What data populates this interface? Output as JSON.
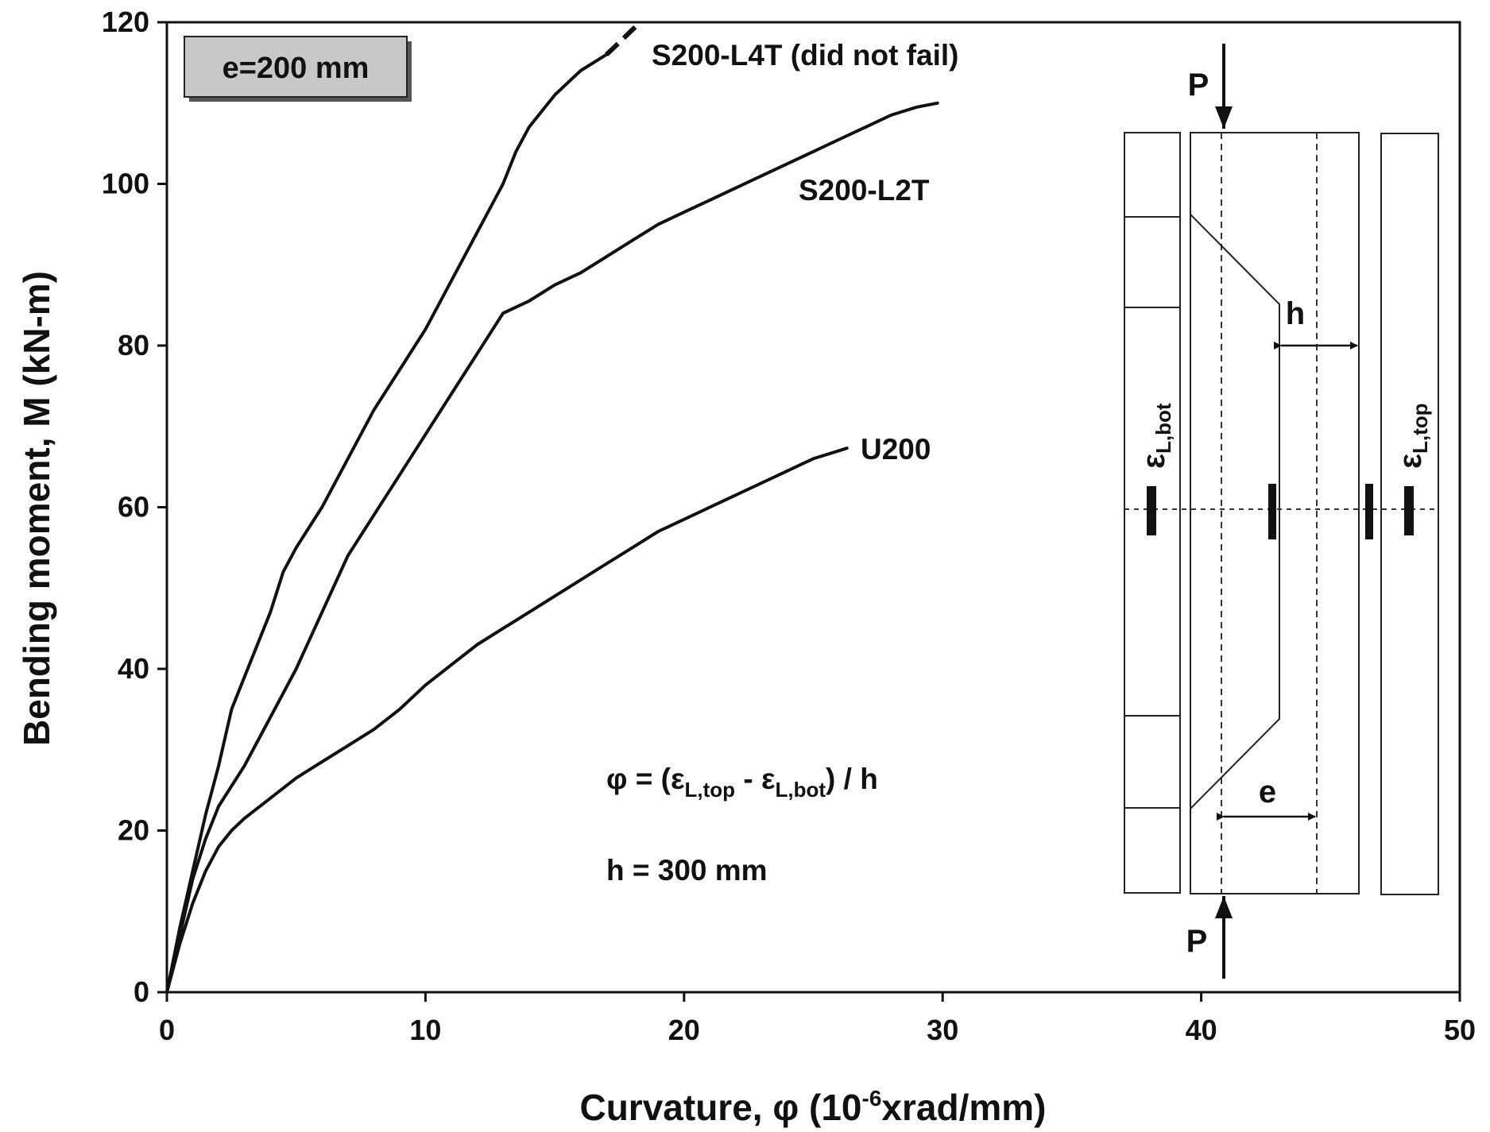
{
  "chart_data": {
    "type": "line",
    "xlabel": {
      "main": "Curvature, φ (10",
      "sup": "-6",
      "tail": "xrad/mm)"
    },
    "ylabel": "Bending moment, M (kN-m)",
    "xlim": [
      0,
      50
    ],
    "ylim": [
      0,
      120
    ],
    "x_ticks": [
      "0",
      "10",
      "20",
      "30",
      "40",
      "50"
    ],
    "y_ticks": [
      "0",
      "20",
      "40",
      "60",
      "80",
      "100",
      "120"
    ],
    "grid": false,
    "series": [
      {
        "name": "S200-L4T (did not fail)",
        "points": [
          [
            0,
            0
          ],
          [
            0.5,
            8
          ],
          [
            1,
            15
          ],
          [
            1.5,
            22
          ],
          [
            2,
            28
          ],
          [
            2.5,
            35
          ],
          [
            3,
            39
          ],
          [
            3.5,
            43
          ],
          [
            4,
            47
          ],
          [
            4.5,
            52
          ],
          [
            5,
            55
          ],
          [
            6,
            60
          ],
          [
            7,
            66
          ],
          [
            8,
            72
          ],
          [
            9,
            77
          ],
          [
            10,
            82
          ],
          [
            11,
            88
          ],
          [
            12,
            94
          ],
          [
            13,
            100
          ],
          [
            13.5,
            104
          ],
          [
            14,
            107
          ],
          [
            15,
            111
          ],
          [
            16,
            114
          ],
          [
            17,
            116
          ]
        ],
        "dashed_points": [
          [
            17,
            116
          ],
          [
            17.5,
            117.5
          ],
          [
            18.3,
            120
          ]
        ]
      },
      {
        "name": "S200-L2T",
        "points": [
          [
            0,
            0
          ],
          [
            0.5,
            7
          ],
          [
            1,
            14
          ],
          [
            1.5,
            19
          ],
          [
            2,
            23
          ],
          [
            3,
            28
          ],
          [
            4,
            34
          ],
          [
            5,
            40
          ],
          [
            6,
            47
          ],
          [
            7,
            54
          ],
          [
            8,
            59
          ],
          [
            9,
            64
          ],
          [
            10,
            69
          ],
          [
            11,
            74
          ],
          [
            12,
            79
          ],
          [
            13,
            84
          ],
          [
            14,
            85.5
          ],
          [
            15,
            87.5
          ],
          [
            16,
            89
          ],
          [
            17,
            91
          ],
          [
            18,
            93
          ],
          [
            19,
            95
          ],
          [
            20,
            96.5
          ],
          [
            21,
            98
          ],
          [
            22,
            99.5
          ],
          [
            23,
            101
          ],
          [
            24,
            102.5
          ],
          [
            25,
            104
          ],
          [
            26,
            105.5
          ],
          [
            27,
            107
          ],
          [
            28,
            108.5
          ],
          [
            29,
            109.5
          ],
          [
            29.8,
            110
          ]
        ]
      },
      {
        "name": "U200",
        "points": [
          [
            0,
            0
          ],
          [
            0.5,
            6
          ],
          [
            1,
            11
          ],
          [
            1.5,
            15
          ],
          [
            2,
            18
          ],
          [
            2.5,
            20
          ],
          [
            3,
            21.5
          ],
          [
            4,
            24
          ],
          [
            5,
            26.5
          ],
          [
            6,
            28.5
          ],
          [
            7,
            30.5
          ],
          [
            8,
            32.5
          ],
          [
            9,
            35
          ],
          [
            10,
            38
          ],
          [
            11,
            40.5
          ],
          [
            12,
            43
          ],
          [
            13,
            45
          ],
          [
            14,
            47
          ],
          [
            15,
            49
          ],
          [
            16,
            51
          ],
          [
            17,
            53
          ],
          [
            18,
            55
          ],
          [
            19,
            57
          ],
          [
            20,
            58.5
          ],
          [
            21,
            60
          ],
          [
            22,
            61.5
          ],
          [
            23,
            63
          ],
          [
            24,
            64.5
          ],
          [
            25,
            66
          ],
          [
            26,
            67
          ],
          [
            26.3,
            67.3
          ]
        ]
      }
    ],
    "series_labels": [
      "S200-L4T (did not fail)",
      "S200-L2T",
      "U200"
    ],
    "annotations": {
      "box": "e=200 mm",
      "formula": {
        "lhs": "φ = (ε",
        "sub1": "L,top",
        "mid": " - ε",
        "sub2": "L,bot",
        "rhs": ") / h"
      },
      "h_value": "h = 300 mm"
    },
    "diagram": {
      "load": "P",
      "load2": "P",
      "h_label": "h",
      "e_label": "e",
      "bot_strain": {
        "eps": "ε",
        "sub": "L,bot"
      },
      "top_strain": {
        "eps": "ε",
        "sub": "L,top"
      }
    }
  }
}
